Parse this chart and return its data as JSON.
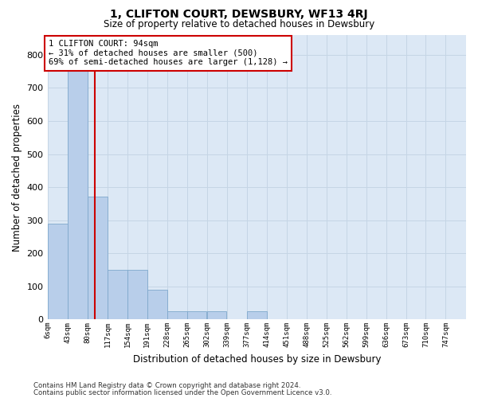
{
  "title": "1, CLIFTON COURT, DEWSBURY, WF13 4RJ",
  "subtitle": "Size of property relative to detached houses in Dewsbury",
  "xlabel": "Distribution of detached houses by size in Dewsbury",
  "ylabel": "Number of detached properties",
  "annotation_line1": "1 CLIFTON COURT: 94sqm",
  "annotation_line2": "← 31% of detached houses are smaller (500)",
  "annotation_line3": "69% of semi-detached houses are larger (1,128) →",
  "bin_edges": [
    6,
    43,
    80,
    117,
    154,
    191,
    228,
    265,
    302,
    339,
    377,
    414,
    451,
    488,
    525,
    562,
    599,
    636,
    673,
    710,
    747
  ],
  "bar_heights": [
    290,
    760,
    370,
    150,
    150,
    90,
    25,
    25,
    25,
    0,
    25,
    0,
    0,
    0,
    0,
    0,
    0,
    0,
    0,
    0
  ],
  "bar_color": "#b8ceea",
  "bar_edge_color": "#7fa8cc",
  "vline_color": "#cc0000",
  "vline_x": 94,
  "annotation_box_color": "#cc0000",
  "grid_color": "#c5d5e5",
  "background_color": "#dce8f5",
  "ylim": [
    0,
    860
  ],
  "yticks": [
    0,
    100,
    200,
    300,
    400,
    500,
    600,
    700,
    800
  ],
  "footnote_line1": "Contains HM Land Registry data © Crown copyright and database right 2024.",
  "footnote_line2": "Contains public sector information licensed under the Open Government Licence v3.0."
}
